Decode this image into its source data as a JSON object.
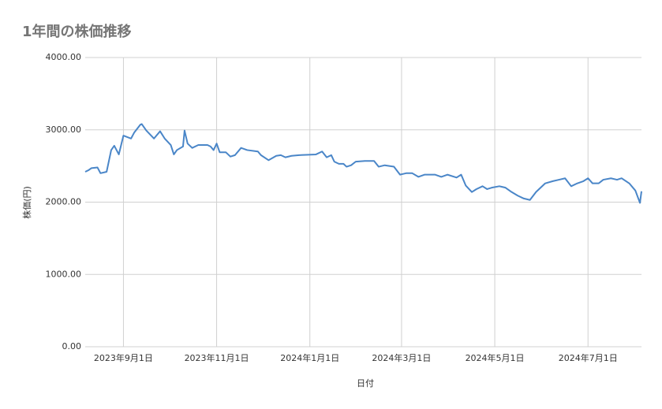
{
  "chart_data": {
    "type": "line",
    "title": "1年間の株価推移",
    "x_label": "日付",
    "y_label": "株価(円)",
    "x": [
      "2023-08-07",
      "2023-08-09",
      "2023-08-11",
      "2023-08-15",
      "2023-08-17",
      "2023-08-21",
      "2023-08-24",
      "2023-08-26",
      "2023-08-29",
      "2023-09-01",
      "2023-09-06",
      "2023-09-08",
      "2023-09-12",
      "2023-09-13",
      "2023-09-16",
      "2023-09-21",
      "2023-09-25",
      "2023-09-28",
      "2023-10-02",
      "2023-10-04",
      "2023-10-06",
      "2023-10-10",
      "2023-10-11",
      "2023-10-13",
      "2023-10-16",
      "2023-10-20",
      "2023-10-26",
      "2023-10-28",
      "2023-10-30",
      "2023-11-01",
      "2023-11-03",
      "2023-11-07",
      "2023-11-10",
      "2023-11-13",
      "2023-11-17",
      "2023-11-21",
      "2023-11-28",
      "2023-11-30",
      "2023-12-05",
      "2023-12-10",
      "2023-12-13",
      "2023-12-16",
      "2023-12-20",
      "2023-12-25",
      "2024-01-05",
      "2024-01-09",
      "2024-01-12",
      "2024-01-15",
      "2024-01-17",
      "2024-01-20",
      "2024-01-23",
      "2024-01-25",
      "2024-01-28",
      "2024-01-31",
      "2024-02-06",
      "2024-02-12",
      "2024-02-15",
      "2024-02-19",
      "2024-02-25",
      "2024-02-29",
      "2024-03-04",
      "2024-03-08",
      "2024-03-12",
      "2024-03-16",
      "2024-03-23",
      "2024-03-27",
      "2024-03-31",
      "2024-04-06",
      "2024-04-09",
      "2024-04-12",
      "2024-04-16",
      "2024-04-19",
      "2024-04-23",
      "2024-04-26",
      "2024-04-29",
      "2024-05-04",
      "2024-05-08",
      "2024-05-12",
      "2024-05-16",
      "2024-05-20",
      "2024-05-24",
      "2024-05-28",
      "2024-06-03",
      "2024-06-08",
      "2024-06-12",
      "2024-06-16",
      "2024-06-20",
      "2024-06-24",
      "2024-06-28",
      "2024-07-01",
      "2024-07-04",
      "2024-07-08",
      "2024-07-11",
      "2024-07-16",
      "2024-07-20",
      "2024-07-23",
      "2024-07-28",
      "2024-08-01",
      "2024-08-04",
      "2024-08-05"
    ],
    "series": [
      {
        "name": "株価",
        "color": "#4a86c8",
        "values": [
          2420,
          2440,
          2470,
          2480,
          2400,
          2420,
          2720,
          2780,
          2660,
          2920,
          2880,
          2960,
          3070,
          3080,
          2990,
          2880,
          2980,
          2880,
          2790,
          2660,
          2720,
          2770,
          2990,
          2810,
          2750,
          2790,
          2790,
          2770,
          2720,
          2810,
          2690,
          2690,
          2630,
          2650,
          2750,
          2720,
          2700,
          2650,
          2580,
          2640,
          2650,
          2620,
          2640,
          2650,
          2660,
          2700,
          2620,
          2650,
          2560,
          2530,
          2530,
          2490,
          2510,
          2560,
          2570,
          2570,
          2490,
          2510,
          2490,
          2380,
          2400,
          2400,
          2350,
          2380,
          2380,
          2350,
          2380,
          2340,
          2380,
          2230,
          2140,
          2180,
          2220,
          2180,
          2200,
          2220,
          2200,
          2140,
          2090,
          2050,
          2030,
          2140,
          2260,
          2290,
          2310,
          2330,
          2220,
          2260,
          2290,
          2330,
          2260,
          2260,
          2310,
          2330,
          2310,
          2330,
          2260,
          2160,
          1990,
          2150
        ]
      }
    ],
    "xlim": [
      "2023-08-07",
      "2024-08-05"
    ],
    "xticks": [
      {
        "value": "2023-09-01",
        "label": "2023年9月1日"
      },
      {
        "value": "2023-11-01",
        "label": "2023年11月1日"
      },
      {
        "value": "2024-01-01",
        "label": "2024年1月1日"
      },
      {
        "value": "2024-03-01",
        "label": "2024年3月1日"
      },
      {
        "value": "2024-05-01",
        "label": "2024年5月1日"
      },
      {
        "value": "2024-07-01",
        "label": "2024年7月1日"
      }
    ],
    "ylim": [
      0,
      4000
    ],
    "yticks": [
      {
        "value": 0,
        "label": "0.00"
      },
      {
        "value": 1000,
        "label": "1000.00"
      },
      {
        "value": 2000,
        "label": "2000.00"
      },
      {
        "value": 3000,
        "label": "3000.00"
      },
      {
        "value": 4000,
        "label": "4000.00"
      }
    ],
    "grid": true
  }
}
